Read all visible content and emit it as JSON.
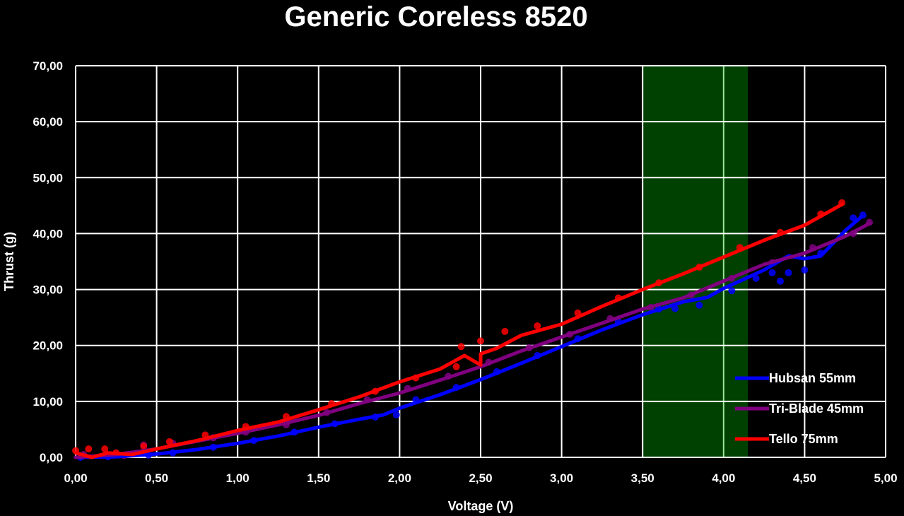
{
  "chart_data": {
    "type": "line",
    "title": "Generic Coreless 8520",
    "xlabel": "Voltage (V)",
    "ylabel": "Thrust (g)",
    "xlim": [
      0,
      5
    ],
    "ylim": [
      0,
      70
    ],
    "x_ticks": [
      0,
      0.5,
      1,
      1.5,
      2,
      2.5,
      3,
      3.5,
      4,
      4.5,
      5
    ],
    "y_ticks": [
      0,
      10,
      20,
      30,
      40,
      50,
      60,
      70
    ],
    "x_tick_labels": [
      "0,00",
      "0,50",
      "1,00",
      "1,50",
      "2,00",
      "2,50",
      "3,00",
      "3,50",
      "4,00",
      "4,50",
      "5,00"
    ],
    "y_tick_labels": [
      "0,00",
      "10,00",
      "20,00",
      "30,00",
      "40,00",
      "50,00",
      "60,00",
      "70,00"
    ],
    "grid": true,
    "legend_position": "bottom-right",
    "highlight_band": {
      "x": [
        3.5,
        4.15
      ],
      "color": "#004000"
    },
    "background": "#000000",
    "series": [
      {
        "name": "Hubsan 55mm",
        "color": "#0000FF",
        "line": [
          [
            0,
            0
          ],
          [
            0.25,
            0.1
          ],
          [
            0.5,
            0.6
          ],
          [
            0.75,
            1.4
          ],
          [
            1,
            2.5
          ],
          [
            1.25,
            3.8
          ],
          [
            1.5,
            5.4
          ],
          [
            1.75,
            6.8
          ],
          [
            1.9,
            7.6
          ],
          [
            2,
            8.8
          ],
          [
            2.25,
            11.2
          ],
          [
            2.5,
            13.9
          ],
          [
            2.75,
            16.8
          ],
          [
            3,
            19.8
          ],
          [
            3.25,
            22.8
          ],
          [
            3.5,
            25.5
          ],
          [
            3.75,
            27.8
          ],
          [
            3.9,
            28.6
          ],
          [
            4,
            30.2
          ],
          [
            4.1,
            31.5
          ],
          [
            4.25,
            33.5
          ],
          [
            4.4,
            36
          ],
          [
            4.5,
            35.5
          ],
          [
            4.6,
            36
          ],
          [
            4.75,
            40.5
          ],
          [
            4.85,
            43
          ]
        ],
        "points": [
          [
            0.03,
            0
          ],
          [
            0.2,
            0.1
          ],
          [
            0.45,
            0.4
          ],
          [
            0.6,
            0.8
          ],
          [
            0.85,
            1.8
          ],
          [
            1.1,
            3
          ],
          [
            1.35,
            4.5
          ],
          [
            1.6,
            6
          ],
          [
            1.85,
            7.2
          ],
          [
            1.98,
            7.6
          ],
          [
            2.1,
            10.3
          ],
          [
            2.35,
            12.5
          ],
          [
            2.6,
            15.3
          ],
          [
            2.85,
            18.2
          ],
          [
            3.1,
            21.2
          ],
          [
            3.35,
            24.3
          ],
          [
            3.6,
            26.5
          ],
          [
            3.7,
            26.6
          ],
          [
            3.85,
            27.2
          ],
          [
            4.05,
            29.8
          ],
          [
            4.2,
            32
          ],
          [
            4.3,
            33
          ],
          [
            4.35,
            31.5
          ],
          [
            4.4,
            33
          ],
          [
            4.5,
            33.5
          ],
          [
            4.6,
            36.5
          ],
          [
            4.8,
            42.8
          ],
          [
            4.86,
            43.3
          ]
        ]
      },
      {
        "name": "Tri-Blade 45mm",
        "color": "#800080",
        "line": [
          [
            0,
            0
          ],
          [
            0.25,
            0.5
          ],
          [
            0.5,
            1.5
          ],
          [
            0.75,
            2.9
          ],
          [
            1,
            4.3
          ],
          [
            1.25,
            5.8
          ],
          [
            1.5,
            7.5
          ],
          [
            1.75,
            9.6
          ],
          [
            2,
            11.5
          ],
          [
            2.25,
            13.8
          ],
          [
            2.5,
            16.2
          ],
          [
            2.75,
            19
          ],
          [
            3,
            21.5
          ],
          [
            3.25,
            24
          ],
          [
            3.5,
            26.5
          ],
          [
            3.75,
            28.5
          ],
          [
            4,
            31.5
          ],
          [
            4.25,
            34.5
          ],
          [
            4.5,
            36.5
          ],
          [
            4.75,
            39.5
          ],
          [
            4.9,
            41.8
          ]
        ],
        "points": [
          [
            0.05,
            0.5
          ],
          [
            0.3,
            0.3
          ],
          [
            0.42,
            2.2
          ],
          [
            0.6,
            2.5
          ],
          [
            0.85,
            3.5
          ],
          [
            1.05,
            4.5
          ],
          [
            1.3,
            5.8
          ],
          [
            1.55,
            8
          ],
          [
            1.8,
            10.3
          ],
          [
            2.05,
            12.3
          ],
          [
            2.3,
            14.5
          ],
          [
            2.55,
            17
          ],
          [
            2.8,
            19.6
          ],
          [
            3.05,
            22
          ],
          [
            3.3,
            24.8
          ],
          [
            3.55,
            26.8
          ],
          [
            3.8,
            29
          ],
          [
            4.05,
            32
          ],
          [
            4.3,
            34.8
          ],
          [
            4.55,
            37.5
          ],
          [
            4.8,
            40
          ],
          [
            4.9,
            42
          ]
        ]
      },
      {
        "name": "Tello 75mm",
        "color": "#FF0000",
        "line": [
          [
            0,
            0.8
          ],
          [
            0.1,
            0
          ],
          [
            0.2,
            0.8
          ],
          [
            0.35,
            0.5
          ],
          [
            0.5,
            1.5
          ],
          [
            0.75,
            3
          ],
          [
            1,
            4.8
          ],
          [
            1.25,
            6.3
          ],
          [
            1.5,
            8.5
          ],
          [
            1.75,
            10.8
          ],
          [
            2,
            13.5
          ],
          [
            2.25,
            15.8
          ],
          [
            2.4,
            18.2
          ],
          [
            2.5,
            16.5
          ],
          [
            2.5,
            18.5
          ],
          [
            2.6,
            19.5
          ],
          [
            2.75,
            21.8
          ],
          [
            3,
            23.8
          ],
          [
            3.25,
            27
          ],
          [
            3.5,
            30
          ],
          [
            3.75,
            32.8
          ],
          [
            4,
            35.8
          ],
          [
            4.25,
            38.8
          ],
          [
            4.5,
            41.5
          ],
          [
            4.73,
            45.2
          ]
        ],
        "points": [
          [
            0,
            1.2
          ],
          [
            0.08,
            1.5
          ],
          [
            0.18,
            1.5
          ],
          [
            0.25,
            0.8
          ],
          [
            0.42,
            2
          ],
          [
            0.58,
            2.8
          ],
          [
            0.8,
            4
          ],
          [
            1.05,
            5.5
          ],
          [
            1.3,
            7.3
          ],
          [
            1.58,
            9.6
          ],
          [
            1.85,
            11.8
          ],
          [
            2.1,
            14.2
          ],
          [
            2.35,
            16.2
          ],
          [
            2.38,
            19.8
          ],
          [
            2.5,
            20.8
          ],
          [
            2.65,
            22.5
          ],
          [
            2.85,
            23.5
          ],
          [
            3.1,
            25.8
          ],
          [
            3.35,
            28.5
          ],
          [
            3.6,
            31.2
          ],
          [
            3.85,
            34
          ],
          [
            4.1,
            37.5
          ],
          [
            4.35,
            40.2
          ],
          [
            4.6,
            43.5
          ],
          [
            4.73,
            45.5
          ]
        ]
      }
    ]
  }
}
